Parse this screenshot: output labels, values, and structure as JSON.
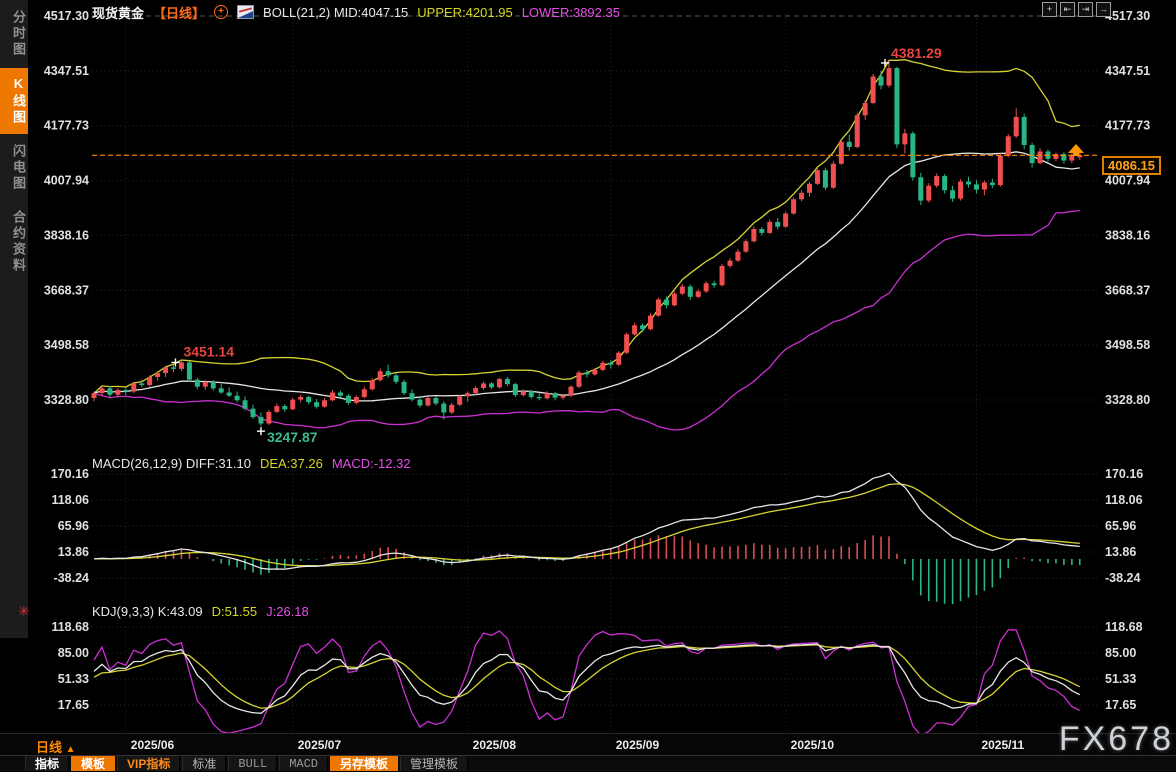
{
  "header": {
    "symbol": "现货黄金",
    "period_tag": "【日线】",
    "boll_mid": "BOLL(21,2) MID:4047.15",
    "boll_upper": "UPPER:4201.95",
    "boll_lower": "LOWER:3892.35"
  },
  "sidebar": {
    "items": [
      {
        "label": "分时图",
        "active": false
      },
      {
        "label": "K线图",
        "active": true
      },
      {
        "label": "闪电图",
        "active": false
      },
      {
        "label": "合约资料",
        "active": false
      }
    ]
  },
  "top_icons": [
    {
      "name": "crosshair-icon",
      "glyph": "+"
    },
    {
      "name": "zoom-out-bars-icon",
      "glyph": "⇤"
    },
    {
      "name": "zoom-in-bars-icon",
      "glyph": "⇥"
    },
    {
      "name": "restore-view-icon",
      "glyph": "→"
    }
  ],
  "panes": {
    "macd": {
      "parts": [
        "MACD(26,12,9) DIFF:31.10",
        "DEA:37.26",
        "MACD:-12.32"
      ]
    },
    "kdj": {
      "parts": [
        "KDJ(9,3,3) K:43.09",
        "D:51.55",
        "J:26.18"
      ]
    }
  },
  "bottom": {
    "period": "日线",
    "period_arrow": "▲",
    "tabs": [
      {
        "label": "指标",
        "variant": "white"
      },
      {
        "label": "模板",
        "variant": "active"
      },
      {
        "label": "VIP指标",
        "variant": "vip"
      },
      {
        "label": "标准",
        "variant": "muted"
      },
      {
        "label": "BULL",
        "variant": "mono"
      },
      {
        "label": "MACD",
        "variant": "mono"
      },
      {
        "label": "另存模板",
        "variant": "active"
      },
      {
        "label": "管理模板",
        "variant": "muted"
      }
    ]
  },
  "watermark": "FX678",
  "price_tag": "4086.15",
  "chart_data": {
    "type": "candlestick-with-indicators",
    "title": "现货黄金 日线 (Spot Gold Daily)",
    "current_price": 4086.15,
    "annotations": {
      "peak_high": {
        "text": "4381.29",
        "index": 100,
        "value": 4381.29
      },
      "swing_high": {
        "text": "3451.14",
        "index": 11,
        "value": 3451.14
      },
      "swing_low": {
        "text": "3247.87",
        "index": 21,
        "value": 3247.87
      }
    },
    "y_axis": {
      "main_ticks": [
        "4517.30",
        "4347.51",
        "4177.73",
        "4007.94",
        "3838.16",
        "3668.37",
        "3498.58",
        "3328.80"
      ],
      "macd_ticks": [
        "170.16",
        "118.06",
        "65.96",
        "13.86",
        "-38.24"
      ],
      "kdj_ticks": [
        "118.68",
        "85.00",
        "51.33",
        "17.65"
      ]
    },
    "x_ticks": [
      {
        "label": "2025/06",
        "index": 4
      },
      {
        "label": "2025/07",
        "index": 25
      },
      {
        "label": "2025/08",
        "index": 47
      },
      {
        "label": "2025/09",
        "index": 65
      },
      {
        "label": "2025/10",
        "index": 87
      },
      {
        "label": "2025/11",
        "index": 111
      }
    ],
    "indicators": {
      "boll": {
        "window": 21,
        "mult": 2
      },
      "macd": {
        "fast": 12,
        "slow": 26,
        "signal": 9
      },
      "kdj": {
        "n": 9,
        "m1": 3,
        "m2": 3
      }
    },
    "colors": {
      "up": "#ef4f4f",
      "down": "#2ab584",
      "boll_upper": "#d6d332",
      "boll_mid": "#e6e6e6",
      "boll_lower": "#cc2fd4",
      "macd_diff": "#e6e6e6",
      "macd_dea": "#d6d332",
      "hist_pos": "#d94f4f",
      "hist_neg": "#2ab584",
      "kdj_k": "#e6e6e6",
      "kdj_d": "#d6d332",
      "kdj_j": "#cc2fd4",
      "price_line": "#ff8c00",
      "annotation_high": "#e8433f",
      "annotation_low": "#3cb98a",
      "grid": "#262626",
      "grid_top": "#5a5a5a",
      "axis_text": "#e0e0e0",
      "accent_orange": "#ee7700"
    },
    "ohlc": [
      [
        3335,
        3355,
        3325,
        3350
      ],
      [
        3350,
        3370,
        3340,
        3365
      ],
      [
        3365,
        3372,
        3338,
        3345
      ],
      [
        3345,
        3366,
        3336,
        3360
      ],
      [
        3360,
        3368,
        3344,
        3355
      ],
      [
        3355,
        3385,
        3350,
        3380
      ],
      [
        3380,
        3392,
        3368,
        3375
      ],
      [
        3375,
        3405,
        3370,
        3400
      ],
      [
        3400,
        3418,
        3388,
        3412
      ],
      [
        3412,
        3435,
        3400,
        3430
      ],
      [
        3430,
        3442,
        3415,
        3425
      ],
      [
        3425,
        3451.14,
        3418,
        3445
      ],
      [
        3445,
        3450,
        3385,
        3392
      ],
      [
        3392,
        3398,
        3362,
        3370
      ],
      [
        3370,
        3390,
        3360,
        3385
      ],
      [
        3385,
        3391,
        3358,
        3365
      ],
      [
        3365,
        3378,
        3348,
        3352
      ],
      [
        3352,
        3368,
        3338,
        3342
      ],
      [
        3342,
        3355,
        3322,
        3328
      ],
      [
        3328,
        3340,
        3296,
        3302
      ],
      [
        3302,
        3315,
        3270,
        3276
      ],
      [
        3276,
        3290,
        3247.87,
        3256
      ],
      [
        3256,
        3298,
        3252,
        3292
      ],
      [
        3292,
        3318,
        3288,
        3310
      ],
      [
        3310,
        3316,
        3292,
        3300
      ],
      [
        3300,
        3336,
        3298,
        3330
      ],
      [
        3330,
        3345,
        3322,
        3338
      ],
      [
        3338,
        3342,
        3316,
        3322
      ],
      [
        3322,
        3332,
        3302,
        3308
      ],
      [
        3308,
        3335,
        3305,
        3328
      ],
      [
        3328,
        3360,
        3324,
        3352
      ],
      [
        3352,
        3358,
        3336,
        3342
      ],
      [
        3342,
        3348,
        3314,
        3320
      ],
      [
        3320,
        3344,
        3315,
        3338
      ],
      [
        3338,
        3370,
        3334,
        3362
      ],
      [
        3362,
        3396,
        3358,
        3390
      ],
      [
        3390,
        3426,
        3386,
        3418
      ],
      [
        3418,
        3438,
        3398,
        3405
      ],
      [
        3405,
        3412,
        3378,
        3385
      ],
      [
        3385,
        3392,
        3344,
        3350
      ],
      [
        3350,
        3362,
        3324,
        3330
      ],
      [
        3330,
        3342,
        3306,
        3312
      ],
      [
        3312,
        3340,
        3308,
        3335
      ],
      [
        3335,
        3340,
        3312,
        3318
      ],
      [
        3318,
        3325,
        3268,
        3290
      ],
      [
        3290,
        3320,
        3286,
        3314
      ],
      [
        3314,
        3345,
        3310,
        3340
      ],
      [
        3340,
        3355,
        3324,
        3350
      ],
      [
        3350,
        3372,
        3344,
        3366
      ],
      [
        3366,
        3386,
        3360,
        3380
      ],
      [
        3380,
        3384,
        3362,
        3368
      ],
      [
        3368,
        3398,
        3364,
        3394
      ],
      [
        3394,
        3400,
        3372,
        3378
      ],
      [
        3378,
        3382,
        3338,
        3344
      ],
      [
        3344,
        3362,
        3340,
        3356
      ],
      [
        3356,
        3360,
        3332,
        3338
      ],
      [
        3338,
        3352,
        3328,
        3334
      ],
      [
        3334,
        3356,
        3330,
        3350
      ],
      [
        3350,
        3354,
        3328,
        3336
      ],
      [
        3336,
        3348,
        3330,
        3342
      ],
      [
        3342,
        3375,
        3338,
        3370
      ],
      [
        3370,
        3420,
        3366,
        3414
      ],
      [
        3414,
        3422,
        3398,
        3408
      ],
      [
        3408,
        3428,
        3404,
        3422
      ],
      [
        3422,
        3450,
        3418,
        3444
      ],
      [
        3444,
        3452,
        3426,
        3438
      ],
      [
        3438,
        3480,
        3434,
        3475
      ],
      [
        3475,
        3538,
        3470,
        3532
      ],
      [
        3532,
        3568,
        3528,
        3560
      ],
      [
        3560,
        3566,
        3538,
        3548
      ],
      [
        3548,
        3596,
        3544,
        3590
      ],
      [
        3590,
        3646,
        3586,
        3640
      ],
      [
        3640,
        3650,
        3612,
        3622
      ],
      [
        3622,
        3665,
        3618,
        3658
      ],
      [
        3658,
        3688,
        3654,
        3680
      ],
      [
        3680,
        3686,
        3638,
        3648
      ],
      [
        3648,
        3672,
        3644,
        3665
      ],
      [
        3665,
        3696,
        3660,
        3690
      ],
      [
        3690,
        3698,
        3676,
        3684
      ],
      [
        3684,
        3750,
        3680,
        3744
      ],
      [
        3744,
        3768,
        3738,
        3760
      ],
      [
        3760,
        3796,
        3756,
        3788
      ],
      [
        3788,
        3826,
        3784,
        3820
      ],
      [
        3820,
        3866,
        3816,
        3858
      ],
      [
        3858,
        3864,
        3838,
        3846
      ],
      [
        3846,
        3888,
        3842,
        3880
      ],
      [
        3880,
        3892,
        3856,
        3865
      ],
      [
        3865,
        3912,
        3862,
        3906
      ],
      [
        3906,
        3956,
        3902,
        3950
      ],
      [
        3950,
        3978,
        3944,
        3970
      ],
      [
        3970,
        4004,
        3958,
        3998
      ],
      [
        3998,
        4046,
        3994,
        4040
      ],
      [
        4040,
        4048,
        3978,
        3986
      ],
      [
        3986,
        4068,
        3982,
        4060
      ],
      [
        4060,
        4136,
        4056,
        4128
      ],
      [
        4128,
        4150,
        4100,
        4112
      ],
      [
        4112,
        4218,
        4108,
        4210
      ],
      [
        4210,
        4256,
        4196,
        4248
      ],
      [
        4248,
        4338,
        4244,
        4330
      ],
      [
        4330,
        4348,
        4290,
        4302
      ],
      [
        4302,
        4381.29,
        4296,
        4356
      ],
      [
        4356,
        4360,
        4108,
        4120
      ],
      [
        4120,
        4168,
        4092,
        4154
      ],
      [
        4154,
        4160,
        4008,
        4018
      ],
      [
        4018,
        4032,
        3932,
        3946
      ],
      [
        3946,
        4000,
        3940,
        3992
      ],
      [
        3992,
        4030,
        3986,
        4022
      ],
      [
        4022,
        4028,
        3968,
        3978
      ],
      [
        3978,
        3992,
        3942,
        3952
      ],
      [
        3952,
        4012,
        3946,
        4005
      ],
      [
        4005,
        4020,
        3986,
        3996
      ],
      [
        3996,
        4010,
        3968,
        3980
      ],
      [
        3980,
        4008,
        3962,
        4002
      ],
      [
        4002,
        4014,
        3984,
        3994
      ],
      [
        3994,
        4092,
        3988,
        4085
      ],
      [
        4085,
        4152,
        4080,
        4145
      ],
      [
        4145,
        4232,
        4140,
        4205
      ],
      [
        4205,
        4215,
        4105,
        4118
      ],
      [
        4118,
        4125,
        4048,
        4062
      ],
      [
        4062,
        4108,
        4058,
        4098
      ],
      [
        4098,
        4104,
        4066,
        4075
      ],
      [
        4075,
        4095,
        4068,
        4090
      ],
      [
        4090,
        4096,
        4060,
        4070
      ],
      [
        4070,
        4092,
        4062,
        4086
      ],
      [
        4080,
        4098,
        4072,
        4086.15
      ]
    ]
  }
}
